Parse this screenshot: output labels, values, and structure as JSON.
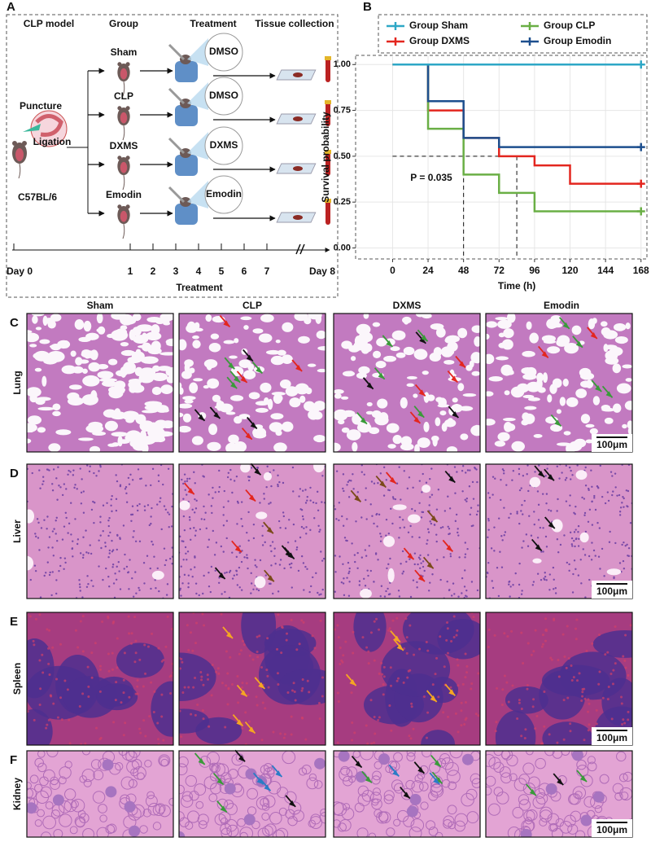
{
  "panel_a": {
    "label": "A",
    "headers": [
      "CLP model",
      "Group",
      "Treatment",
      "Tissue collection"
    ],
    "model": {
      "puncture": "Puncture",
      "ligation": "Ligation",
      "strain": "C57BL/6"
    },
    "groups": [
      "Sham",
      "CLP",
      "DXMS",
      "Emodin"
    ],
    "treatments": [
      "DMSO",
      "DMSO",
      "DXMS",
      "Emodin"
    ],
    "timeline": {
      "start": "Day 0",
      "days": [
        "1",
        "2",
        "3",
        "4",
        "5",
        "6",
        "7"
      ],
      "end": "Day 8",
      "label": "Treatment"
    }
  },
  "chart_data": {
    "type": "line",
    "step": "post",
    "label": "B",
    "x": [
      0,
      24,
      48,
      72,
      96,
      120,
      168
    ],
    "series": [
      {
        "name": "Group Sham",
        "color": "#2ea7c6",
        "values": [
          1,
          1,
          1,
          1,
          1,
          1,
          1
        ]
      },
      {
        "name": "Group CLP",
        "color": "#6aaf45",
        "values": [
          1,
          0.65,
          0.4,
          0.3,
          0.2,
          0.2,
          0.2
        ]
      },
      {
        "name": "Group DXMS",
        "color": "#e3261f",
        "values": [
          1,
          0.75,
          0.6,
          0.5,
          0.45,
          0.35,
          0.35
        ]
      },
      {
        "name": "Group Emodin",
        "color": "#1d4f8e",
        "values": [
          1,
          0.8,
          0.6,
          0.55,
          0.55,
          0.55,
          0.55
        ]
      }
    ],
    "xlim": [
      -25,
      172
    ],
    "ylim": [
      -0.06,
      1.05
    ],
    "xticks": [
      0,
      24,
      48,
      72,
      96,
      120,
      144,
      168
    ],
    "yticks": [
      {
        "value": 0,
        "label": "0.00"
      },
      {
        "value": 0.25,
        "label": "0.25"
      },
      {
        "value": 0.5,
        "label": "0.50"
      },
      {
        "value": 0.75,
        "label": "0.75"
      },
      {
        "value": 1,
        "label": "1.00"
      }
    ],
    "xlabel": "Time (h)",
    "ylabel": "Survival probability",
    "grid": true,
    "legend": "top",
    "median_lines": {
      "y": 0.5,
      "x": [
        48,
        84
      ]
    },
    "annotation": "P = 0.035"
  },
  "histology": {
    "panel_labels": [
      "C",
      "D",
      "E",
      "F"
    ],
    "columns": [
      "Sham",
      "CLP",
      "DXMS",
      "Emodin"
    ],
    "rows": [
      "Lung",
      "Liver",
      "Spleen",
      "Kidney"
    ],
    "scale_bar": "100μm"
  }
}
